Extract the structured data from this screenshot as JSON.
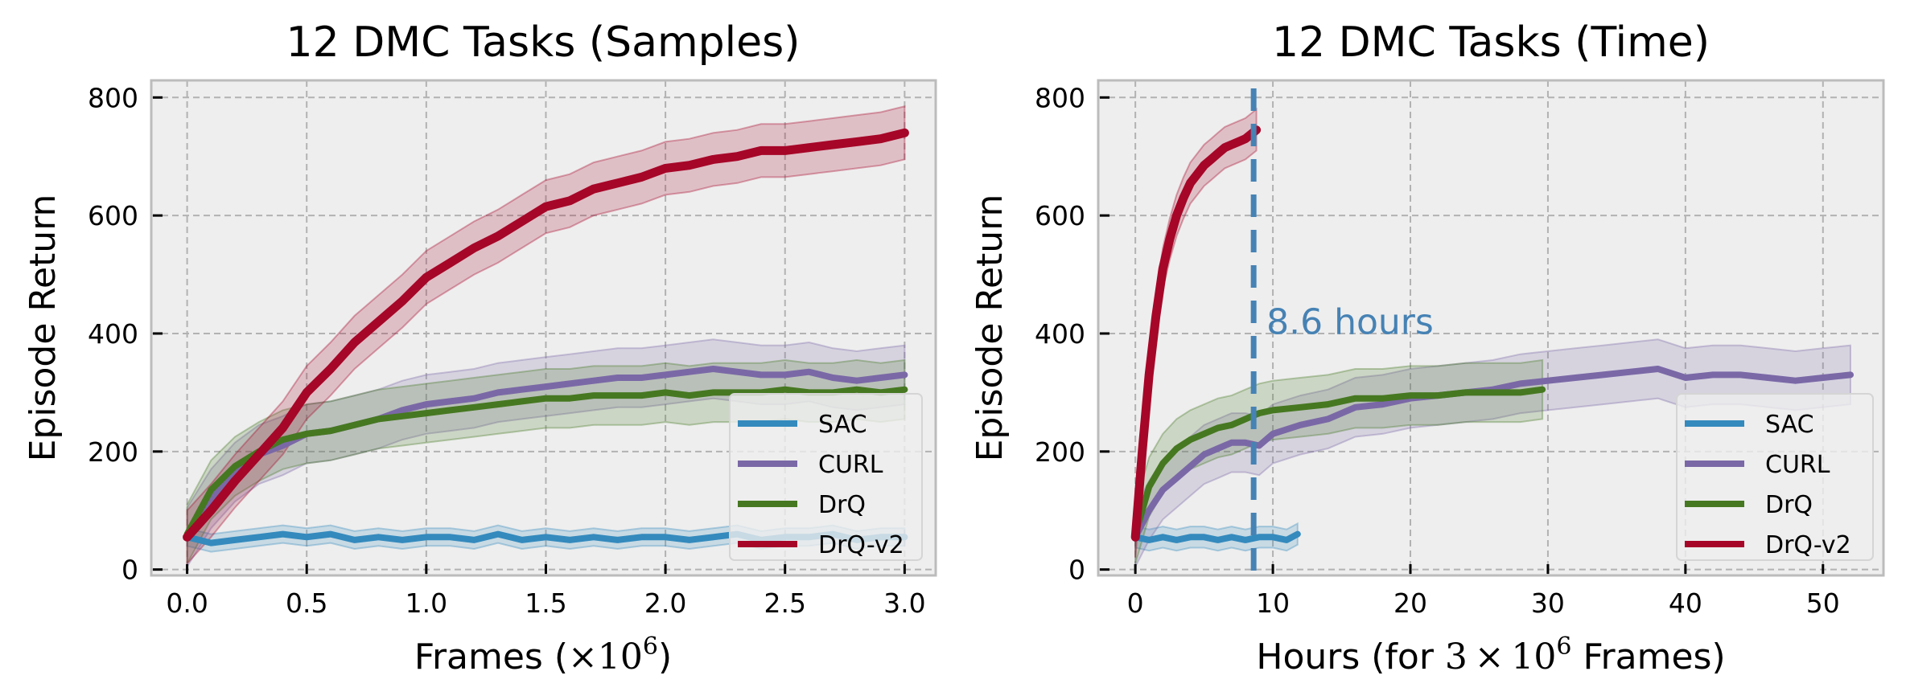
{
  "chart_data": [
    {
      "type": "line",
      "title": "12 DMC Tasks (Samples)",
      "xlabel": "Frames (×10^6)",
      "xlabel_parts": {
        "prefix": "Frames (",
        "math": "×10",
        "sup": "6",
        "suffix": ")"
      },
      "ylabel": "Episode Return",
      "xlim": [
        -0.15,
        3.13
      ],
      "ylim": [
        -10,
        829
      ],
      "xticks": [
        0.0,
        0.5,
        1.0,
        1.5,
        2.0,
        2.5,
        3.0
      ],
      "xtick_labels": [
        "0.0",
        "0.5",
        "1.0",
        "1.5",
        "2.0",
        "2.5",
        "3.0"
      ],
      "yticks": [
        0,
        200,
        400,
        600,
        800
      ],
      "ytick_labels": [
        "0",
        "200",
        "400",
        "600",
        "800"
      ],
      "grid": true,
      "legend": {
        "placement": "lower-right",
        "entries": [
          "SAC",
          "CURL",
          "DrQ",
          "DrQ-v2"
        ]
      },
      "series": [
        {
          "name": "SAC",
          "color": "#348ABD",
          "band": 15,
          "x": [
            0.0,
            0.1,
            0.2,
            0.3,
            0.4,
            0.5,
            0.6,
            0.7,
            0.8,
            0.9,
            1.0,
            1.1,
            1.2,
            1.3,
            1.4,
            1.5,
            1.6,
            1.7,
            1.8,
            1.9,
            2.0,
            2.1,
            2.2,
            2.3,
            2.4,
            2.5,
            2.6,
            2.7,
            2.8,
            2.9,
            3.0
          ],
          "values": [
            55,
            45,
            50,
            55,
            60,
            55,
            60,
            50,
            55,
            50,
            55,
            55,
            50,
            60,
            50,
            55,
            50,
            55,
            50,
            55,
            55,
            50,
            55,
            60,
            50,
            55,
            55,
            60,
            50,
            55,
            55
          ]
        },
        {
          "name": "CURL",
          "color": "#7A68A6",
          "band": 50,
          "x": [
            0.0,
            0.1,
            0.2,
            0.3,
            0.4,
            0.5,
            0.6,
            0.7,
            0.8,
            0.9,
            1.0,
            1.1,
            1.2,
            1.3,
            1.4,
            1.5,
            1.6,
            1.7,
            1.8,
            1.9,
            2.0,
            2.1,
            2.2,
            2.3,
            2.4,
            2.5,
            2.6,
            2.7,
            2.8,
            2.9,
            3.0
          ],
          "values": [
            55,
            120,
            165,
            195,
            210,
            230,
            235,
            245,
            255,
            270,
            280,
            285,
            290,
            300,
            305,
            310,
            315,
            320,
            325,
            325,
            330,
            335,
            340,
            335,
            330,
            330,
            335,
            325,
            320,
            325,
            330
          ]
        },
        {
          "name": "DrQ",
          "color": "#467821",
          "band": 50,
          "x": [
            0.0,
            0.1,
            0.2,
            0.3,
            0.4,
            0.5,
            0.6,
            0.7,
            0.8,
            0.9,
            1.0,
            1.1,
            1.2,
            1.3,
            1.4,
            1.5,
            1.6,
            1.7,
            1.8,
            1.9,
            2.0,
            2.1,
            2.2,
            2.3,
            2.4,
            2.5,
            2.6,
            2.7,
            2.8,
            2.9,
            3.0
          ],
          "values": [
            60,
            135,
            175,
            200,
            220,
            230,
            235,
            245,
            255,
            260,
            265,
            270,
            275,
            280,
            285,
            290,
            290,
            295,
            295,
            295,
            300,
            295,
            300,
            300,
            300,
            305,
            300,
            300,
            305,
            300,
            305
          ]
        },
        {
          "name": "DrQ-v2",
          "color": "#A60628",
          "band": 45,
          "x": [
            0.0,
            0.1,
            0.2,
            0.3,
            0.4,
            0.5,
            0.6,
            0.7,
            0.8,
            0.9,
            1.0,
            1.1,
            1.2,
            1.3,
            1.4,
            1.5,
            1.6,
            1.7,
            1.8,
            1.9,
            2.0,
            2.1,
            2.2,
            2.3,
            2.4,
            2.5,
            2.6,
            2.7,
            2.8,
            2.9,
            3.0
          ],
          "values": [
            55,
            100,
            150,
            195,
            240,
            300,
            340,
            385,
            420,
            455,
            495,
            520,
            545,
            565,
            590,
            615,
            625,
            645,
            655,
            665,
            680,
            685,
            695,
            700,
            710,
            710,
            715,
            720,
            725,
            730,
            740
          ]
        }
      ]
    },
    {
      "type": "line",
      "title": "12 DMC Tasks (Time)",
      "xlabel": "Hours (for 3×10^6 Frames)",
      "xlabel_parts": {
        "prefix": "Hours (for ",
        "math": "3 × 10",
        "sup": "6",
        "suffix": " Frames)"
      },
      "ylabel": "Episode Return",
      "xlim": [
        -2.7,
        54.4
      ],
      "ylim": [
        -10,
        829
      ],
      "xticks": [
        0,
        10,
        20,
        30,
        40,
        50
      ],
      "xtick_labels": [
        "0",
        "10",
        "20",
        "30",
        "40",
        "50"
      ],
      "yticks": [
        0,
        200,
        400,
        600,
        800
      ],
      "ytick_labels": [
        "0",
        "200",
        "400",
        "600",
        "800"
      ],
      "grid": true,
      "legend": {
        "placement": "lower-right",
        "entries": [
          "SAC",
          "CURL",
          "DrQ",
          "DrQ-v2"
        ]
      },
      "annotation": {
        "text": "8.6 hours",
        "x": 8.6,
        "y": 405,
        "color": "#4682B4",
        "vline_x": 8.6
      },
      "series": [
        {
          "name": "SAC",
          "color": "#348ABD",
          "band": 18,
          "x": [
            0,
            1,
            2,
            3,
            4,
            5,
            6,
            7,
            8,
            9,
            10,
            11,
            11.8
          ],
          "values": [
            55,
            50,
            55,
            50,
            55,
            55,
            50,
            55,
            50,
            55,
            55,
            50,
            60
          ]
        },
        {
          "name": "CURL",
          "color": "#7A68A6",
          "band": 50,
          "x": [
            0,
            1,
            2,
            3,
            4,
            5,
            6,
            7,
            8,
            9,
            10,
            12,
            14,
            16,
            18,
            20,
            22,
            24,
            26,
            28,
            30,
            32,
            34,
            36,
            38,
            40,
            42,
            44,
            46,
            48,
            50,
            52
          ],
          "values": [
            55,
            100,
            135,
            155,
            175,
            195,
            205,
            215,
            215,
            210,
            230,
            245,
            255,
            275,
            280,
            290,
            295,
            300,
            305,
            315,
            320,
            325,
            330,
            335,
            340,
            325,
            330,
            330,
            325,
            320,
            325,
            330
          ]
        },
        {
          "name": "DrQ",
          "color": "#467821",
          "band": 50,
          "x": [
            0,
            1,
            2,
            3,
            4,
            5,
            6,
            7,
            8,
            9,
            10,
            12,
            14,
            16,
            18,
            20,
            22,
            24,
            26,
            28,
            29.6
          ],
          "values": [
            60,
            140,
            180,
            205,
            220,
            230,
            240,
            245,
            255,
            265,
            270,
            275,
            280,
            290,
            290,
            295,
            295,
            300,
            300,
            300,
            305
          ]
        },
        {
          "name": "DrQ-v2",
          "color": "#A60628",
          "band": 35,
          "x": [
            0,
            0.5,
            1,
            1.5,
            2,
            2.5,
            3,
            3.5,
            4,
            4.5,
            5,
            5.5,
            6,
            6.5,
            7,
            7.5,
            8,
            8.8
          ],
          "values": [
            55,
            200,
            330,
            430,
            510,
            560,
            600,
            630,
            655,
            670,
            685,
            695,
            705,
            715,
            720,
            725,
            730,
            745
          ]
        }
      ]
    }
  ]
}
